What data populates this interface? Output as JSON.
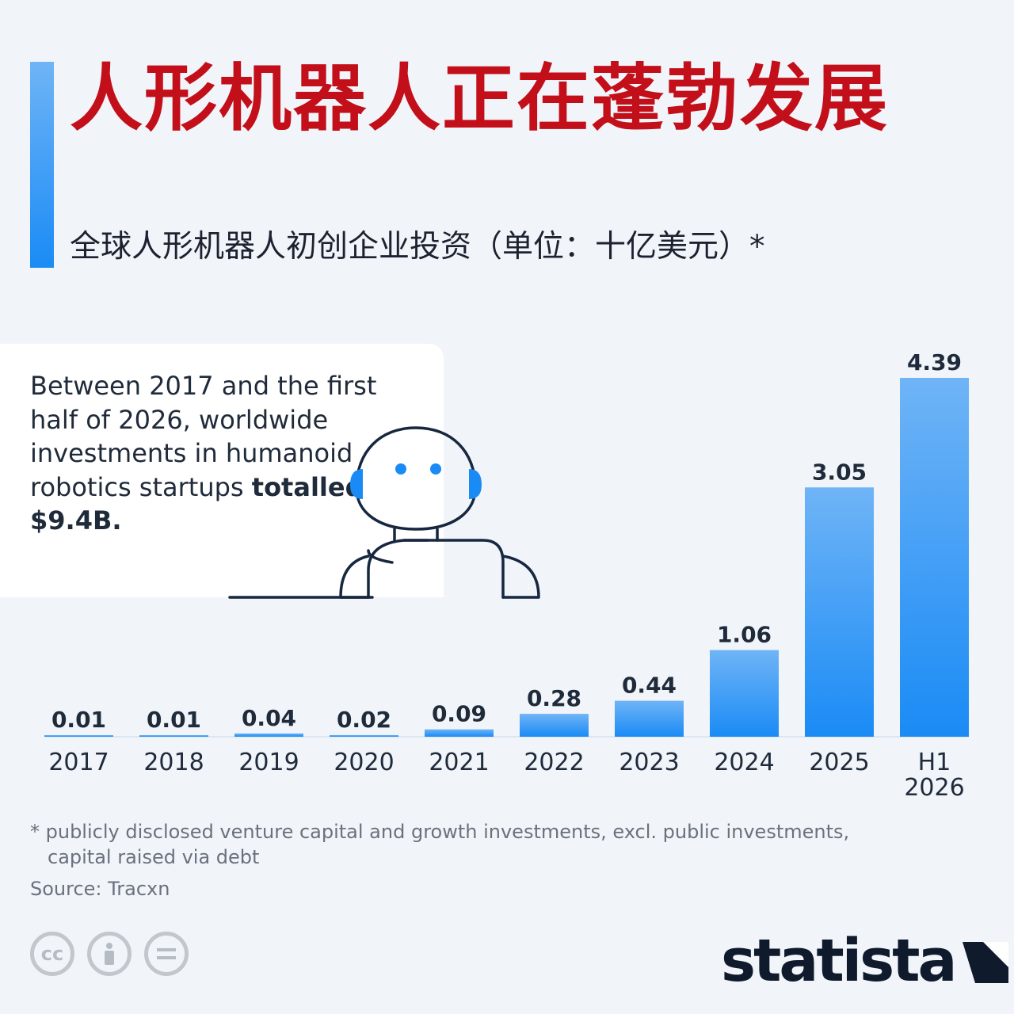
{
  "header": {
    "title": "人形机器人正在蓬勃发展",
    "subtitle": "全球人形机器人初创企业投资（单位：十亿美元）*"
  },
  "callout": {
    "text_main": "Between 2017 and the first half of 2026, worldwide investments in humanoid robotics startups",
    "text_bold": "totalled $9.4B."
  },
  "footer": {
    "footnote_line1": "* publicly disclosed venture capital and growth investments, excl. public investments,",
    "footnote_line2": "capital raised via debt",
    "source": "Source: Tracxn",
    "logo": "statista",
    "license_icons": [
      "cc-icon",
      "attribution-icon",
      "no-derivatives-icon"
    ]
  },
  "colors": {
    "title": "#c20f1a",
    "bar_top": "#6fb4f6",
    "bar_bottom": "#1a8bf5",
    "text": "#1f2a3a"
  },
  "chart_data": {
    "type": "bar",
    "categories": [
      "2017",
      "2018",
      "2019",
      "2020",
      "2021",
      "2022",
      "2023",
      "2024",
      "2025",
      "H1 2026"
    ],
    "values": [
      0.01,
      0.01,
      0.04,
      0.02,
      0.09,
      0.28,
      0.44,
      1.06,
      3.05,
      4.39
    ],
    "value_labels": [
      "0.01",
      "0.01",
      "0.04",
      "0.02",
      "0.09",
      "0.28",
      "0.44",
      "1.06",
      "3.05",
      "4.39"
    ],
    "ylim": [
      0,
      4.39
    ],
    "grid": false,
    "legend": "none"
  }
}
